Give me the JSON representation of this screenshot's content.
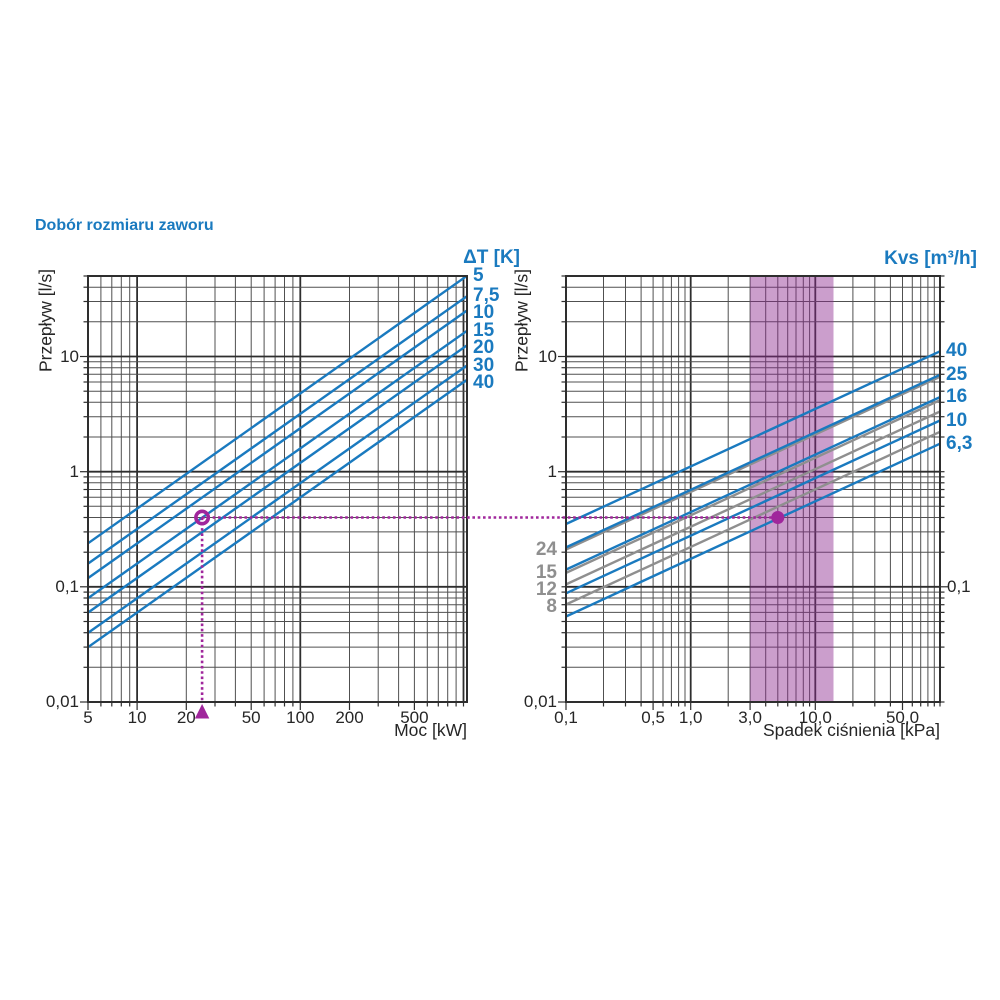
{
  "title": "Dobór rozmiaru zaworu",
  "colors": {
    "accent_blue": "#1a7abf",
    "grid_minor": "#505050",
    "grid_major": "#2e2e2e",
    "gray_line": "#8f8f8f",
    "magenta": "#a0269c",
    "band_fill": "rgba(139,40,143,0.45)",
    "text": "#262626"
  },
  "selection": {
    "power_kw": 25,
    "flow_ls": 0.4,
    "pressure_drop_kpa": 5
  },
  "chart_data": [
    {
      "type": "line",
      "name": "power-flow-chart",
      "xlabel": "Moc [kW]",
      "ylabel": "Przepływ [l/s]",
      "legend_title": "ΔT [K]",
      "x_scale": "log",
      "y_scale": "log",
      "xlim": [
        5,
        1050
      ],
      "ylim": [
        0.01,
        50
      ],
      "grid": "on",
      "x_ticks": [
        {
          "v": 5,
          "l": "5"
        },
        {
          "v": 10,
          "l": "10"
        },
        {
          "v": 20,
          "l": "20"
        },
        {
          "v": 50,
          "l": "50"
        },
        {
          "v": 100,
          "l": "100"
        },
        {
          "v": 200,
          "l": "200"
        },
        {
          "v": 500,
          "l": "500"
        }
      ],
      "y_ticks_left": [
        {
          "v": 10,
          "l": "10"
        },
        {
          "v": 1,
          "l": "1"
        },
        {
          "v": 0.1,
          "l": "0,1"
        },
        {
          "v": 0.01,
          "l": "0,01"
        }
      ],
      "series": [
        {
          "label": "5",
          "delta_t_k": 5,
          "line_color": "#1a7abf",
          "label_side": "right",
          "points": [
            [
              5,
              0.239
            ],
            [
              1050,
              50.2
            ]
          ]
        },
        {
          "label": "7,5",
          "delta_t_k": 7.5,
          "line_color": "#1a7abf",
          "label_side": "right",
          "points": [
            [
              5,
              0.159
            ],
            [
              1050,
              33.4
            ]
          ]
        },
        {
          "label": "10",
          "delta_t_k": 10,
          "line_color": "#1a7abf",
          "label_side": "right",
          "points": [
            [
              5,
              0.119
            ],
            [
              1050,
              25.1
            ]
          ]
        },
        {
          "label": "15",
          "delta_t_k": 15,
          "line_color": "#1a7abf",
          "label_side": "right",
          "points": [
            [
              5,
              0.0796
            ],
            [
              1050,
              16.7
            ]
          ]
        },
        {
          "label": "20",
          "delta_t_k": 20,
          "line_color": "#1a7abf",
          "label_side": "right",
          "points": [
            [
              5,
              0.0597
            ],
            [
              1050,
              12.5
            ]
          ]
        },
        {
          "label": "30",
          "delta_t_k": 30,
          "line_color": "#1a7abf",
          "label_side": "right",
          "points": [
            [
              5,
              0.0398
            ],
            [
              1050,
              8.36
            ]
          ]
        },
        {
          "label": "40",
          "delta_t_k": 40,
          "line_color": "#1a7abf",
          "label_side": "right",
          "points": [
            [
              5,
              0.0299
            ],
            [
              1050,
              6.27
            ]
          ]
        }
      ],
      "marker": {
        "shape": "ring-circle",
        "x_kw": 25,
        "y_ls": 0.4
      },
      "axis_marker": {
        "shape": "triangle-up",
        "x_kw": 25
      }
    },
    {
      "type": "line",
      "name": "pressure-drop-flow-chart",
      "xlabel": "Spadek ciśnienia [kPa]",
      "ylabel": "Przepływ [l/s]",
      "legend_title": "Kvs [m³/h]",
      "x_scale": "log",
      "y_scale": "log",
      "xlim": [
        0.1,
        100
      ],
      "ylim": [
        0.01,
        50
      ],
      "grid": "on",
      "band_kpa": [
        3,
        14
      ],
      "x_ticks": [
        {
          "v": 0.1,
          "l": "0,1"
        },
        {
          "v": 0.5,
          "l": "0,5"
        },
        {
          "v": 1,
          "l": "1,0"
        },
        {
          "v": 3,
          "l": "3,0"
        },
        {
          "v": 10,
          "l": "10,0"
        },
        {
          "v": 50,
          "l": "50,0"
        }
      ],
      "y_ticks_left": [
        {
          "v": 10,
          "l": "10"
        },
        {
          "v": 1,
          "l": "1"
        },
        {
          "v": 0.01,
          "l": "0,01"
        }
      ],
      "y_ticks_right": [
        {
          "v": 0.1,
          "l": "0,1"
        }
      ],
      "series": [
        {
          "label": "24",
          "kv": 24,
          "line_color": "#8f8f8f",
          "label_side": "left",
          "points": [
            [
              0.1,
              0.211
            ],
            [
              100,
              6.67
            ]
          ]
        },
        {
          "label": "15",
          "kv": 15,
          "line_color": "#8f8f8f",
          "label_side": "left",
          "points": [
            [
              0.1,
              0.132
            ],
            [
              100,
              4.17
            ]
          ]
        },
        {
          "label": "12",
          "kv": 12,
          "line_color": "#8f8f8f",
          "label_side": "left",
          "points": [
            [
              0.1,
              0.105
            ],
            [
              100,
              3.33
            ]
          ]
        },
        {
          "label": "8",
          "kv": 8,
          "line_color": "#8f8f8f",
          "label_side": "left",
          "points": [
            [
              0.1,
              0.0703
            ],
            [
              100,
              2.22
            ]
          ]
        },
        {
          "label": "40",
          "kvs": 40,
          "line_color": "#1a7abf",
          "label_side": "right",
          "points": [
            [
              0.1,
              0.351
            ],
            [
              100,
              11.1
            ]
          ]
        },
        {
          "label": "25",
          "kvs": 25,
          "line_color": "#1a7abf",
          "label_side": "right",
          "points": [
            [
              0.1,
              0.22
            ],
            [
              100,
              6.94
            ]
          ]
        },
        {
          "label": "16",
          "kvs": 16,
          "line_color": "#1a7abf",
          "label_side": "right",
          "points": [
            [
              0.1,
              0.141
            ],
            [
              100,
              4.44
            ]
          ]
        },
        {
          "label": "10",
          "kvs": 10,
          "line_color": "#1a7abf",
          "label_side": "right",
          "points": [
            [
              0.1,
              0.0878
            ],
            [
              100,
              2.78
            ]
          ]
        },
        {
          "label": "6,3",
          "kvs": 6.3,
          "line_color": "#1a7abf",
          "label_side": "right",
          "points": [
            [
              0.1,
              0.0553
            ],
            [
              100,
              1.75
            ]
          ]
        }
      ],
      "marker": {
        "shape": "dot",
        "x_kpa": 5,
        "y_ls": 0.4
      }
    }
  ]
}
